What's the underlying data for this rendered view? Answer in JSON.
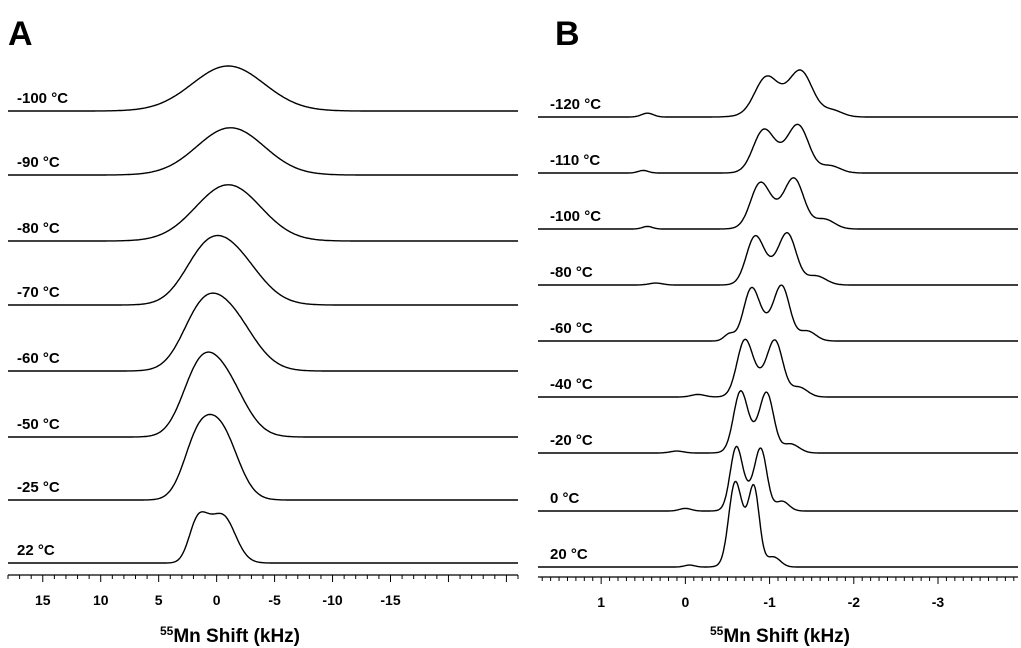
{
  "chart_data": [
    {
      "panel": "A",
      "type": "line",
      "xlabel_iso": "55",
      "xlabel": "Mn Shift (kHz)",
      "x_reversed": true,
      "xticks": [
        15,
        10,
        5,
        0,
        -5,
        -10,
        -15
      ],
      "xlim": [
        18,
        -26
      ],
      "series": [
        {
          "name": "-100 °C",
          "peaks": [
            {
              "pos": -1.0,
              "amp": 1.0,
              "width": 3.1
            }
          ]
        },
        {
          "name": "-90 °C",
          "peaks": [
            {
              "pos": -1.2,
              "amp": 1.05,
              "width": 2.9
            }
          ]
        },
        {
          "name": "-80 °C",
          "peaks": [
            {
              "pos": -1.0,
              "amp": 1.25,
              "width": 2.8
            }
          ]
        },
        {
          "name": "-70 °C",
          "peaks": [
            {
              "pos": -1.1,
              "amp": 1.2,
              "width": 2.4
            },
            {
              "pos": 1.3,
              "amp": 0.6,
              "width": 1.8
            }
          ]
        },
        {
          "name": "-60 °C",
          "peaks": [
            {
              "pos": -0.8,
              "amp": 1.35,
              "width": 2.2
            },
            {
              "pos": 1.6,
              "amp": 0.75,
              "width": 1.6
            }
          ]
        },
        {
          "name": "-50 °C",
          "peaks": [
            {
              "pos": -0.3,
              "amp": 1.45,
              "width": 1.9
            },
            {
              "pos": 1.8,
              "amp": 0.85,
              "width": 1.4
            }
          ]
        },
        {
          "name": "-25 °C",
          "peaks": [
            {
              "pos": -0.3,
              "amp": 1.55,
              "width": 1.5
            },
            {
              "pos": 1.8,
              "amp": 1.0,
              "width": 1.2
            }
          ]
        },
        {
          "name": "22 °C",
          "peaks": [
            {
              "pos": -0.5,
              "amp": 1.05,
              "width": 1.1
            },
            {
              "pos": 1.8,
              "amp": 0.7,
              "width": 0.7
            },
            {
              "pos": 1.0,
              "amp": 0.35,
              "width": 0.7
            }
          ]
        }
      ]
    },
    {
      "panel": "B",
      "type": "line",
      "xlabel_iso": "55",
      "xlabel": "Mn Shift (kHz)",
      "x_reversed": true,
      "xticks": [
        1,
        0,
        -1,
        -2,
        -3
      ],
      "xlim": [
        1.75,
        -3.95
      ],
      "series": [
        {
          "name": "-120 °C",
          "peaks": [
            {
              "pos": -0.95,
              "amp": 0.9,
              "width": 0.13
            },
            {
              "pos": -1.38,
              "amp": 1.05,
              "width": 0.13
            },
            {
              "pos": -1.18,
              "amp": 0.55,
              "width": 0.25
            },
            {
              "pos": 0.45,
              "amp": 0.12,
              "width": 0.07
            },
            {
              "pos": -1.75,
              "amp": 0.18,
              "width": 0.12
            }
          ]
        },
        {
          "name": "-110 °C",
          "peaks": [
            {
              "pos": -0.92,
              "amp": 1.1,
              "width": 0.12
            },
            {
              "pos": -1.35,
              "amp": 1.2,
              "width": 0.12
            },
            {
              "pos": -1.15,
              "amp": 0.5,
              "width": 0.2
            },
            {
              "pos": 0.5,
              "amp": 0.08,
              "width": 0.06
            },
            {
              "pos": -1.72,
              "amp": 0.22,
              "width": 0.12
            }
          ]
        },
        {
          "name": "-100 °C",
          "peaks": [
            {
              "pos": -0.88,
              "amp": 1.15,
              "width": 0.11
            },
            {
              "pos": -1.3,
              "amp": 1.25,
              "width": 0.11
            },
            {
              "pos": -1.1,
              "amp": 0.55,
              "width": 0.2
            },
            {
              "pos": 0.45,
              "amp": 0.08,
              "width": 0.06
            },
            {
              "pos": -1.65,
              "amp": 0.3,
              "width": 0.12
            }
          ]
        },
        {
          "name": "-80 °C",
          "peaks": [
            {
              "pos": -0.82,
              "amp": 1.25,
              "width": 0.1
            },
            {
              "pos": -1.22,
              "amp": 1.3,
              "width": 0.1
            },
            {
              "pos": -1.03,
              "amp": 0.55,
              "width": 0.18
            },
            {
              "pos": 0.35,
              "amp": 0.06,
              "width": 0.08
            },
            {
              "pos": -1.55,
              "amp": 0.28,
              "width": 0.12
            }
          ]
        },
        {
          "name": "-60 °C",
          "peaks": [
            {
              "pos": -0.78,
              "amp": 1.35,
              "width": 0.09
            },
            {
              "pos": -1.15,
              "amp": 1.4,
              "width": 0.09
            },
            {
              "pos": -0.97,
              "amp": 0.55,
              "width": 0.18
            },
            {
              "pos": -0.52,
              "amp": 0.2,
              "width": 0.06
            },
            {
              "pos": -1.45,
              "amp": 0.3,
              "width": 0.1
            }
          ]
        },
        {
          "name": "-40 °C",
          "peaks": [
            {
              "pos": -0.7,
              "amp": 1.5,
              "width": 0.09
            },
            {
              "pos": -1.07,
              "amp": 1.5,
              "width": 0.09
            },
            {
              "pos": -0.88,
              "amp": 0.55,
              "width": 0.16
            },
            {
              "pos": -0.15,
              "amp": 0.08,
              "width": 0.08
            },
            {
              "pos": -1.35,
              "amp": 0.3,
              "width": 0.1
            }
          ]
        },
        {
          "name": "-20 °C",
          "peaks": [
            {
              "pos": -0.65,
              "amp": 1.6,
              "width": 0.08
            },
            {
              "pos": -0.97,
              "amp": 1.6,
              "width": 0.08
            },
            {
              "pos": -0.8,
              "amp": 0.55,
              "width": 0.15
            },
            {
              "pos": 0.1,
              "amp": 0.06,
              "width": 0.08
            },
            {
              "pos": -1.25,
              "amp": 0.28,
              "width": 0.1
            }
          ]
        },
        {
          "name": "0 °C",
          "peaks": [
            {
              "pos": -0.6,
              "amp": 1.7,
              "width": 0.07
            },
            {
              "pos": -0.9,
              "amp": 1.65,
              "width": 0.07
            },
            {
              "pos": -0.75,
              "amp": 0.6,
              "width": 0.13
            },
            {
              "pos": 0.0,
              "amp": 0.08,
              "width": 0.07
            },
            {
              "pos": -1.15,
              "amp": 0.3,
              "width": 0.08
            }
          ]
        },
        {
          "name": "20 °C",
          "peaks": [
            {
              "pos": -0.58,
              "amp": 1.9,
              "width": 0.07
            },
            {
              "pos": -0.82,
              "amp": 1.8,
              "width": 0.06
            },
            {
              "pos": -0.7,
              "amp": 1.2,
              "width": 0.12
            },
            {
              "pos": -1.05,
              "amp": 0.3,
              "width": 0.08
            },
            {
              "pos": -0.05,
              "amp": 0.06,
              "width": 0.06
            }
          ]
        }
      ]
    }
  ]
}
